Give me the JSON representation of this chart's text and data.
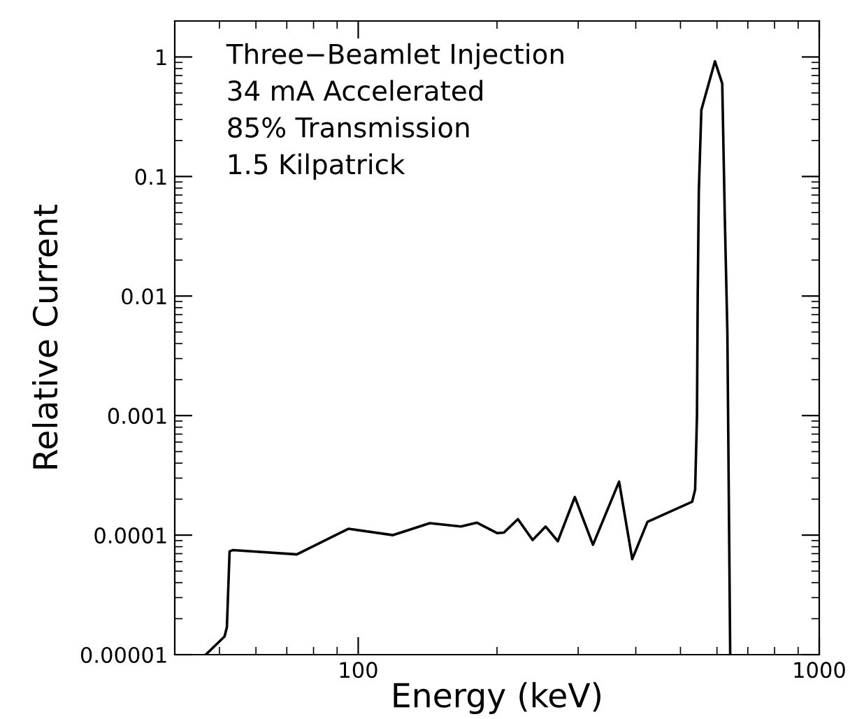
{
  "chart_data": {
    "type": "line",
    "xlabel": "Energy (keV)",
    "ylabel": "Relative Current",
    "log": "xy",
    "grid": false,
    "legend": false,
    "marker": "none",
    "line_style": "solid",
    "annotations": [
      "Three−Beamlet Injection",
      "34 mA Accelerated",
      "85% Transmission",
      "1.5 Kilpatrick"
    ],
    "xlim": [
      40,
      1000
    ],
    "ylim": [
      1e-05,
      2
    ],
    "xticks": [
      100,
      1000
    ],
    "yticks": [
      {
        "value": 1e-05,
        "label": "0.00001"
      },
      {
        "value": 0.0001,
        "label": "0.0001"
      },
      {
        "value": 0.001,
        "label": "0.001"
      },
      {
        "value": 0.01,
        "label": "0.01"
      },
      {
        "value": 0.1,
        "label": "0.1"
      },
      {
        "value": 1,
        "label": "1"
      }
    ],
    "x": [
      46.7,
      51.3,
      51.9,
      52.6,
      53.5,
      73.6,
      95.2,
      119,
      143,
      167,
      181,
      200,
      207,
      222,
      239,
      255,
      271,
      295,
      323,
      368,
      393,
      424,
      530,
      538,
      543,
      545,
      548,
      555,
      594,
      616,
      624,
      632,
      641
    ],
    "series": [
      {
        "color": "#000000",
        "values": [
          1e-05,
          1.42e-05,
          1.7e-05,
          7.3e-05,
          7.5e-05,
          6.9e-05,
          0.000113,
          0.0001,
          0.000126,
          0.000118,
          0.000127,
          0.000104,
          0.000105,
          0.000136,
          9.1e-05,
          0.000118,
          8.9e-05,
          0.000208,
          8.3e-05,
          0.00028,
          6.3e-05,
          0.000129,
          0.00019,
          0.00024,
          0.001,
          0.01,
          0.075,
          0.36,
          0.92,
          0.6,
          0.045,
          0.005,
          1e-05
        ]
      }
    ]
  }
}
